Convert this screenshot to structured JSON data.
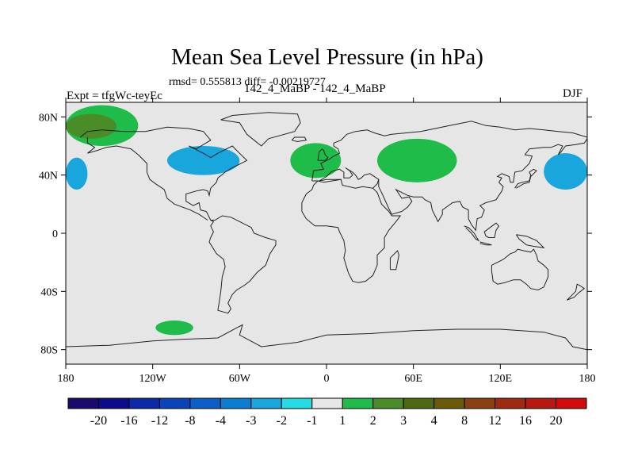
{
  "chart_data": {
    "type": "heatmap",
    "title": "Mean Sea Level Pressure (in hPa)",
    "subtitle": "rmsd= 0.555813 diff= -0.00219727",
    "left_label": "Expt = tfgWc-teyEc",
    "center_label": "142_4_MaBP - 142_4_MaBP",
    "right_label": "DJF",
    "x_ticks": [
      "180",
      "120W",
      "60W",
      "0",
      "60E",
      "120E",
      "180"
    ],
    "x_tick_values": [
      -180,
      -120,
      -60,
      0,
      60,
      120,
      180
    ],
    "y_ticks": [
      "80N",
      "40N",
      "0",
      "40S",
      "80S"
    ],
    "y_tick_values": [
      80,
      40,
      0,
      -40,
      -80
    ],
    "xlim": [
      -180,
      180
    ],
    "ylim": [
      -90,
      90
    ],
    "colorbar": {
      "labels": [
        "-20",
        "-16",
        "-12",
        "-8",
        "-4",
        "-3",
        "-2",
        "-1",
        "1",
        "2",
        "3",
        "4",
        "8",
        "12",
        "16",
        "20"
      ],
      "colors": [
        "#1a0a6e",
        "#0b0b8c",
        "#0a2aa8",
        "#0a44bb",
        "#0a5fc8",
        "#0a7ed2",
        "#18a6dc",
        "#26dce4",
        "#e6e6e6",
        "#1fbc4a",
        "#4a8c28",
        "#4e6a10",
        "#6a5a08",
        "#8a4010",
        "#a02a10",
        "#b81810",
        "#d40a0a"
      ]
    },
    "anomaly_regions": [
      {
        "name": "north-pacific-positive",
        "level": "2",
        "lon": [
          -180,
          -130
        ],
        "lat": [
          60,
          88
        ]
      },
      {
        "name": "north-pacific-positive-strong",
        "level": "3",
        "lon": [
          -180,
          -145
        ],
        "lat": [
          65,
          82
        ]
      },
      {
        "name": "north-america-negative",
        "level": "-2",
        "lon": [
          -110,
          -60
        ],
        "lat": [
          40,
          60
        ]
      },
      {
        "name": "north-atlantic-positive",
        "level": "2",
        "lon": [
          -25,
          10
        ],
        "lat": [
          38,
          62
        ]
      },
      {
        "name": "eurasia-positive",
        "level": "2",
        "lon": [
          35,
          90
        ],
        "lat": [
          35,
          65
        ]
      },
      {
        "name": "east-pacific-negative",
        "level": "-2",
        "lon": [
          -180,
          -165
        ],
        "lat": [
          30,
          52
        ]
      },
      {
        "name": "west-pacific-negative",
        "level": "-2",
        "lon": [
          150,
          180
        ],
        "lat": [
          30,
          55
        ]
      },
      {
        "name": "south-pacific-positive",
        "level": "2",
        "lon": [
          -118,
          -92
        ],
        "lat": [
          -70,
          -60
        ]
      }
    ]
  }
}
